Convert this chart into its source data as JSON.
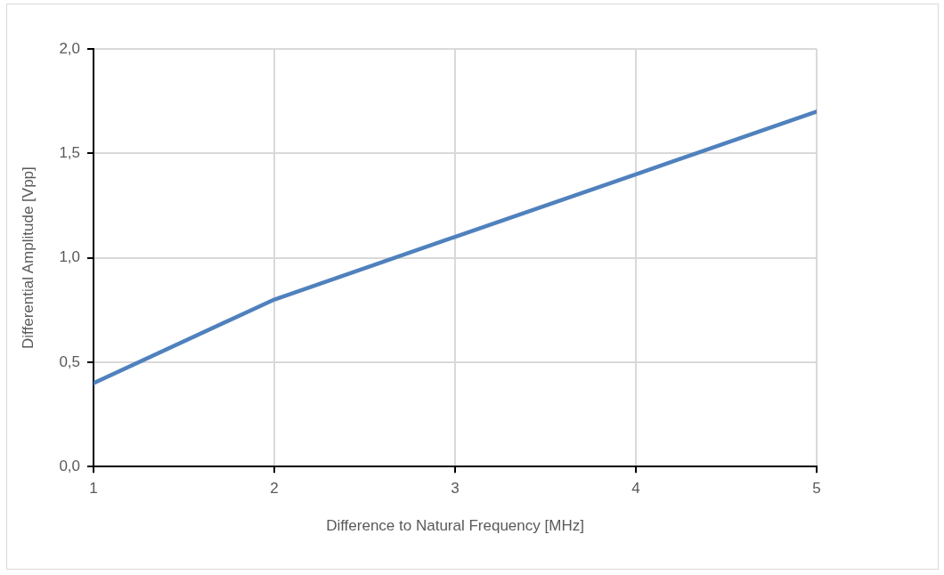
{
  "chart_data": {
    "type": "line",
    "xlabel": "Difference to Natural Frequency [MHz]",
    "ylabel": "Differential Amplitude [Vpp]",
    "x": [
      1,
      2,
      3,
      4,
      5
    ],
    "series": [
      {
        "color": "#4f81bd",
        "values": [
          0.4,
          0.8,
          1.1,
          1.4,
          1.7
        ]
      }
    ],
    "xlim": [
      1,
      5
    ],
    "xticks": [
      1,
      2,
      3,
      4,
      5
    ],
    "ylim": [
      0,
      2
    ],
    "yticks": [
      {
        "value": 0,
        "label": "0,0"
      },
      {
        "value": 0.5,
        "label": "0,5"
      },
      {
        "value": 1,
        "label": "1,0"
      },
      {
        "value": 1.5,
        "label": "1,5"
      },
      {
        "value": 2,
        "label": "2,0"
      }
    ],
    "grid": true,
    "legend": false,
    "marker": "none",
    "line_style": "solid"
  }
}
